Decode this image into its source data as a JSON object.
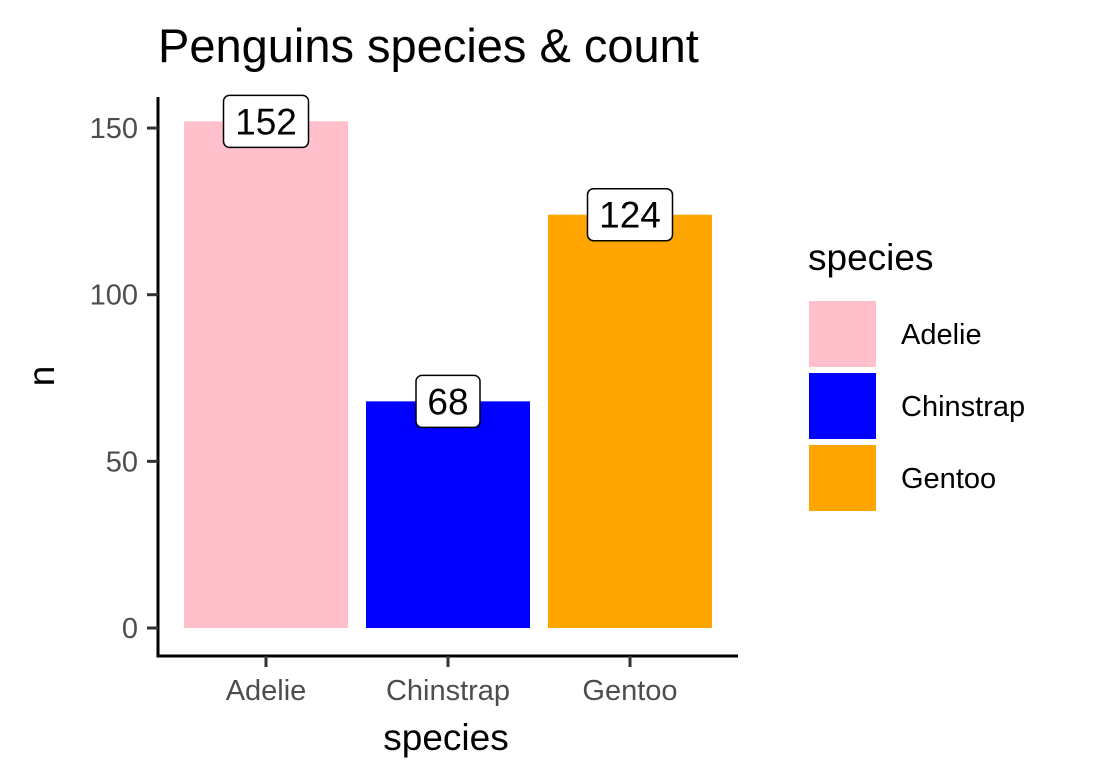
{
  "chart_data": {
    "type": "bar",
    "title": "Penguins species & count",
    "xlabel": "species",
    "ylabel": "n",
    "categories": [
      "Adelie",
      "Chinstrap",
      "Gentoo"
    ],
    "values": [
      152,
      68,
      124
    ],
    "colors": [
      "#ffc0cb",
      "#0000ff",
      "#ffa500"
    ],
    "ylim": [
      0,
      160
    ],
    "yticks": [
      0,
      50,
      100,
      150
    ],
    "data_labels": [
      "152",
      "68",
      "124"
    ],
    "grid": false,
    "legend": {
      "title": "species",
      "placement": "right",
      "entries": [
        "Adelie",
        "Chinstrap",
        "Gentoo"
      ]
    }
  }
}
